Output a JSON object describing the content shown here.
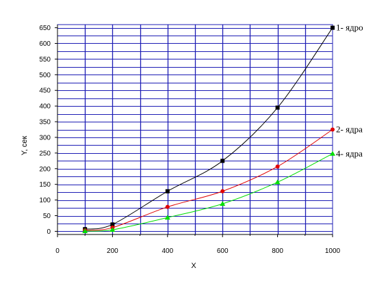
{
  "chart_data": {
    "type": "line",
    "title": "",
    "xlabel": "X",
    "ylabel": "Y, сек",
    "xlim": [
      0,
      1000
    ],
    "ylim": [
      -10,
      660
    ],
    "xticks": [
      0,
      200,
      400,
      600,
      800,
      1000
    ],
    "yticks": [
      0,
      50,
      100,
      150,
      200,
      250,
      300,
      350,
      400,
      450,
      500,
      550,
      600,
      650
    ],
    "x_minor_step": 100,
    "y_minor_step": 25,
    "grid": true,
    "grid_color": "#1c1cb4",
    "x": [
      100,
      200,
      400,
      600,
      800,
      1000
    ],
    "series": [
      {
        "name": "1- ядро",
        "values": [
          7,
          22,
          128,
          225,
          395,
          650
        ],
        "color": "#000000",
        "marker": "square"
      },
      {
        "name": "2- ядра",
        "values": [
          3,
          12,
          78,
          128,
          207,
          325
        ],
        "color": "#e00000",
        "marker": "circle"
      },
      {
        "name": "4- ядра",
        "values": [
          1,
          5,
          44,
          88,
          157,
          248
        ],
        "color": "#00dd00",
        "marker": "triangle"
      }
    ]
  }
}
